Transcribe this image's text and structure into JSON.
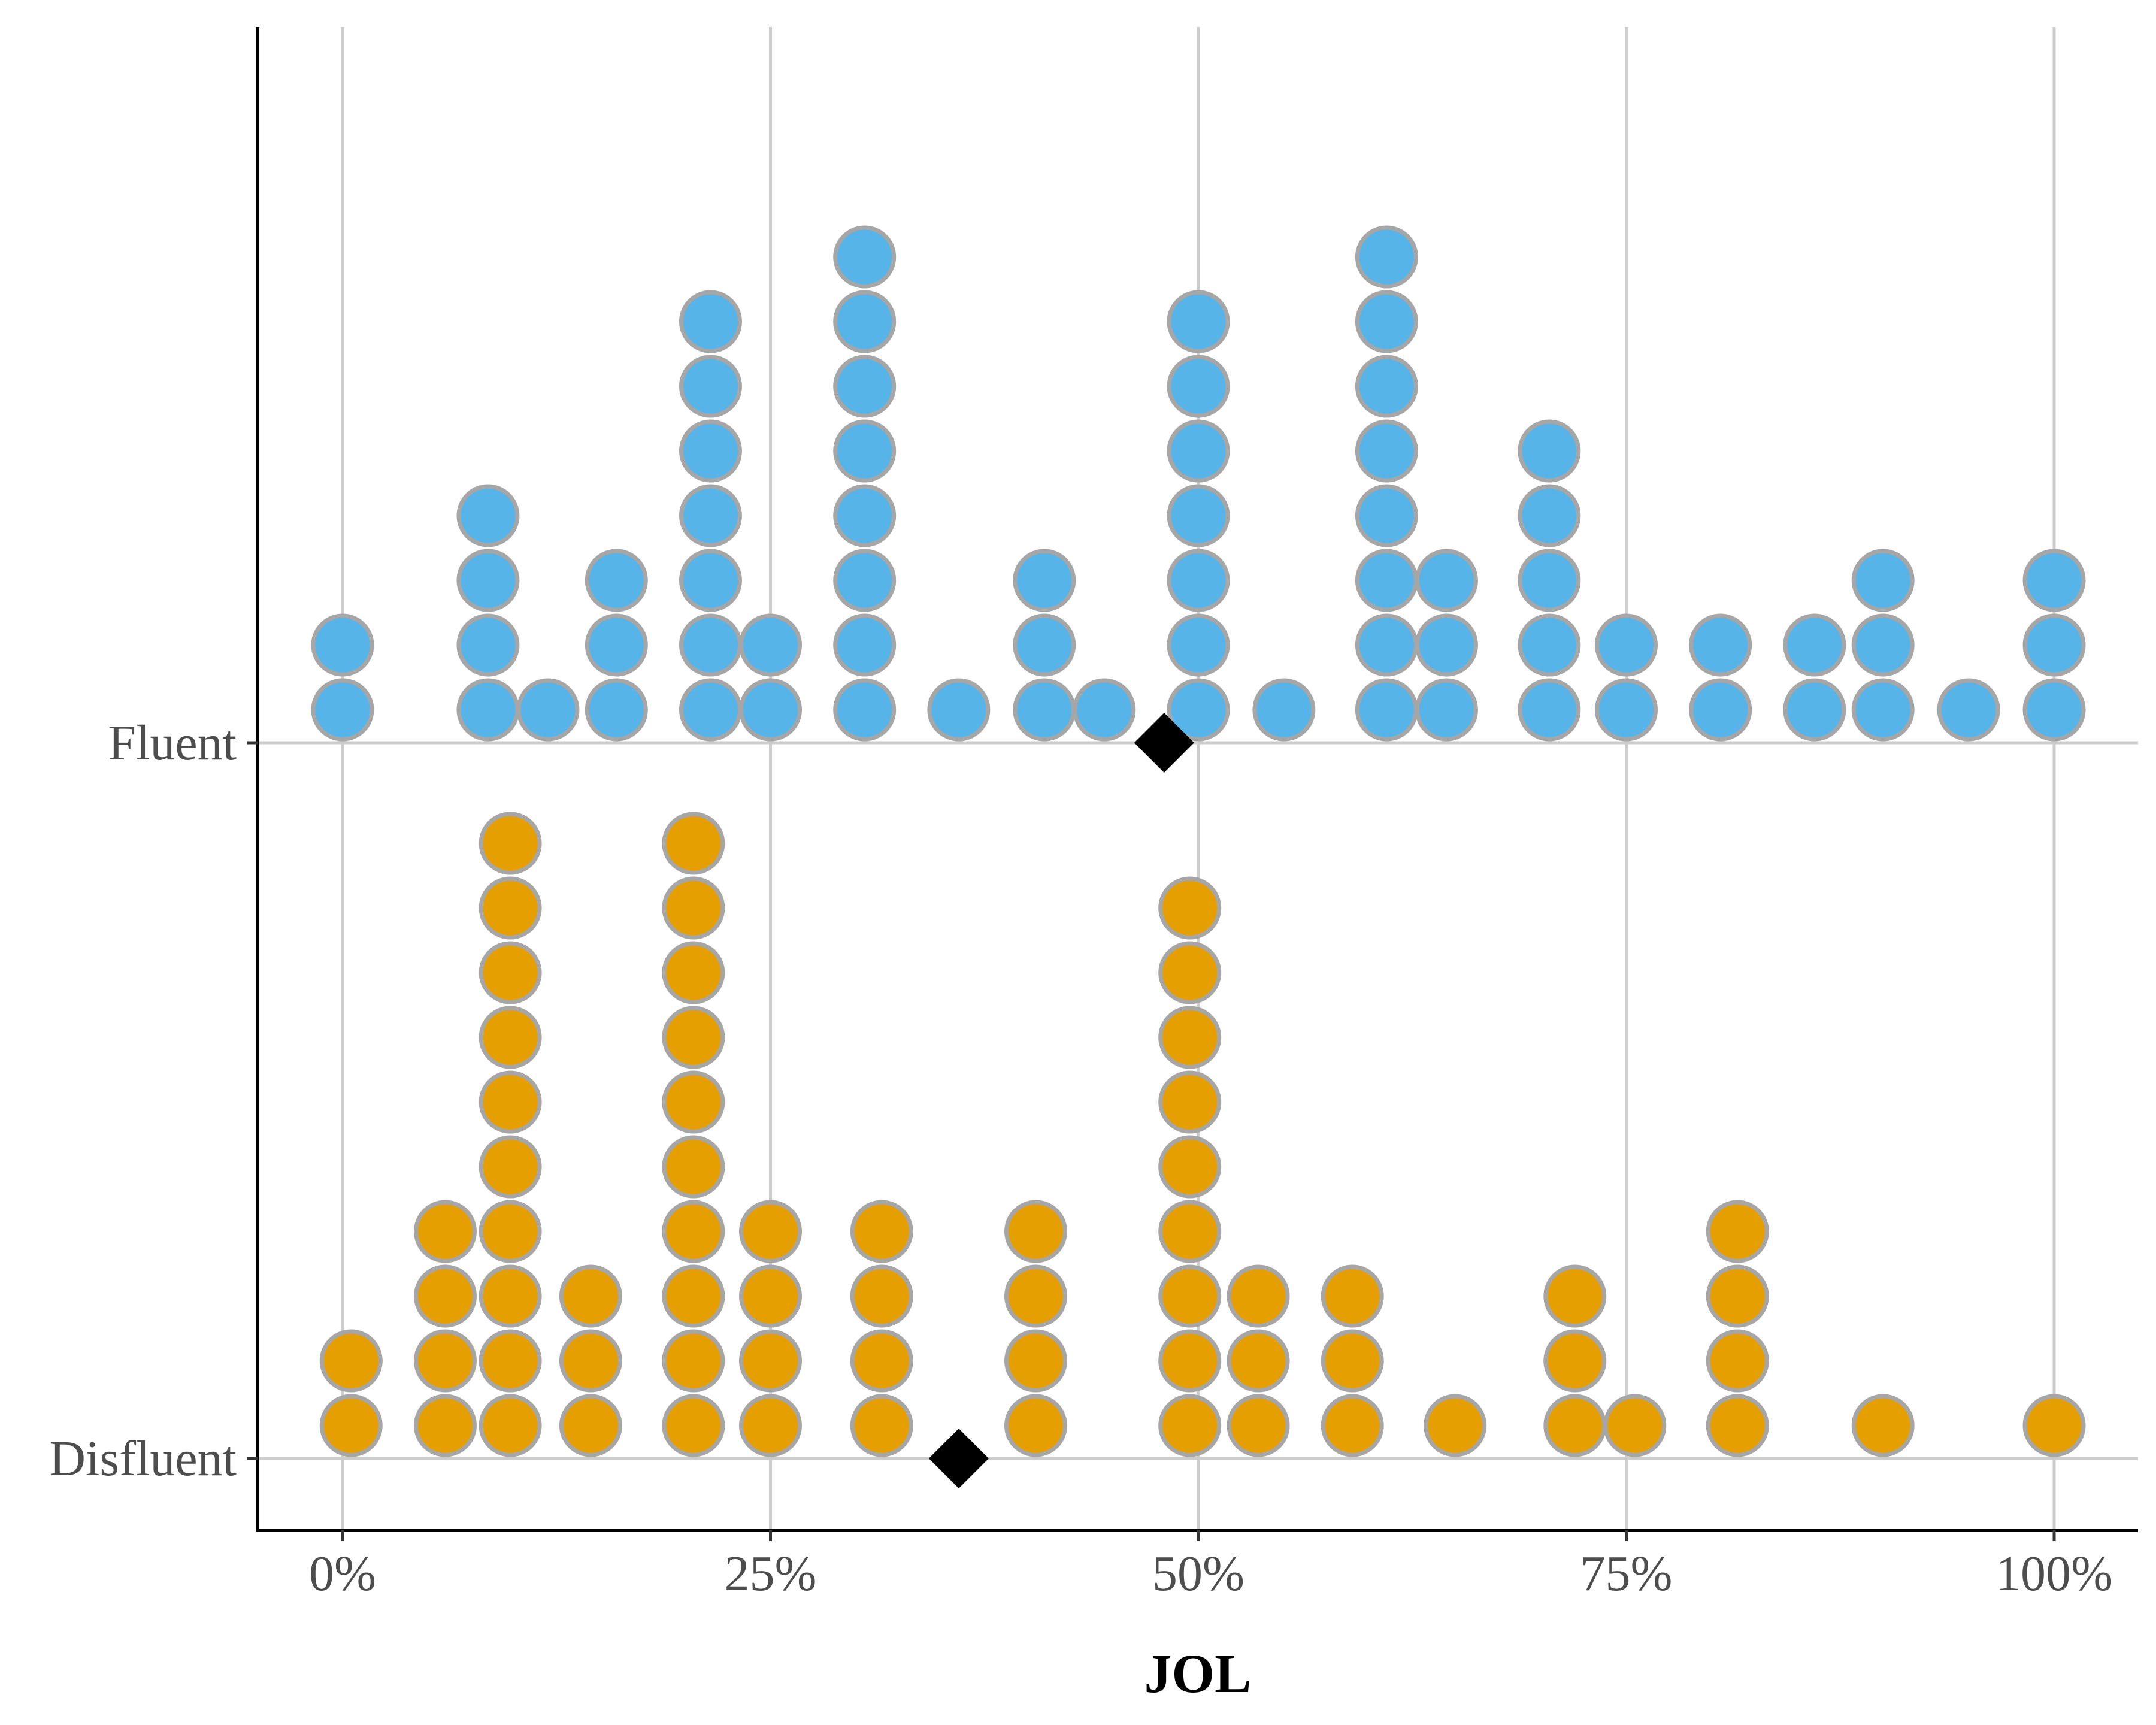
{
  "chart_data": {
    "type": "dotplot",
    "title": "",
    "xlabel": "JOL",
    "ylabel": "",
    "x_range": [
      0,
      100
    ],
    "x_ticks": [
      0,
      25,
      50,
      75,
      100
    ],
    "x_tick_labels": [
      "0%",
      "25%",
      "50%",
      "75%",
      "100%"
    ],
    "grid": true,
    "legend": "none",
    "categories": [
      "Disfluent",
      "Fluent"
    ],
    "series": [
      {
        "name": "Fluent",
        "color": "#56B4E9",
        "bins": [
          {
            "x": 0,
            "count": 2
          },
          {
            "x": 8.5,
            "count": 4
          },
          {
            "x": 12,
            "count": 1
          },
          {
            "x": 16,
            "count": 3
          },
          {
            "x": 21.5,
            "count": 7
          },
          {
            "x": 25,
            "count": 2
          },
          {
            "x": 30.5,
            "count": 8
          },
          {
            "x": 36,
            "count": 1
          },
          {
            "x": 41,
            "count": 3
          },
          {
            "x": 44.5,
            "count": 1
          },
          {
            "x": 50,
            "count": 7
          },
          {
            "x": 55,
            "count": 1
          },
          {
            "x": 61,
            "count": 8
          },
          {
            "x": 64.5,
            "count": 3
          },
          {
            "x": 70.5,
            "count": 5
          },
          {
            "x": 75,
            "count": 2
          },
          {
            "x": 80.5,
            "count": 2
          },
          {
            "x": 86,
            "count": 2
          },
          {
            "x": 90,
            "count": 3
          },
          {
            "x": 95,
            "count": 1
          },
          {
            "x": 100,
            "count": 3
          }
        ],
        "mean": 48
      },
      {
        "name": "Disfluent",
        "color": "#E69F00",
        "bins": [
          {
            "x": 0.5,
            "count": 2
          },
          {
            "x": 6,
            "count": 4
          },
          {
            "x": 9.8,
            "count": 10
          },
          {
            "x": 14.5,
            "count": 3
          },
          {
            "x": 20.5,
            "count": 10
          },
          {
            "x": 25,
            "count": 4
          },
          {
            "x": 31.5,
            "count": 4
          },
          {
            "x": 40.5,
            "count": 4
          },
          {
            "x": 49.5,
            "count": 9
          },
          {
            "x": 53.5,
            "count": 3
          },
          {
            "x": 59,
            "count": 3
          },
          {
            "x": 65,
            "count": 1
          },
          {
            "x": 72,
            "count": 3
          },
          {
            "x": 75.5,
            "count": 1
          },
          {
            "x": 81.5,
            "count": 4
          },
          {
            "x": 90,
            "count": 1
          },
          {
            "x": 100,
            "count": 1
          }
        ],
        "mean": 36
      }
    ]
  }
}
